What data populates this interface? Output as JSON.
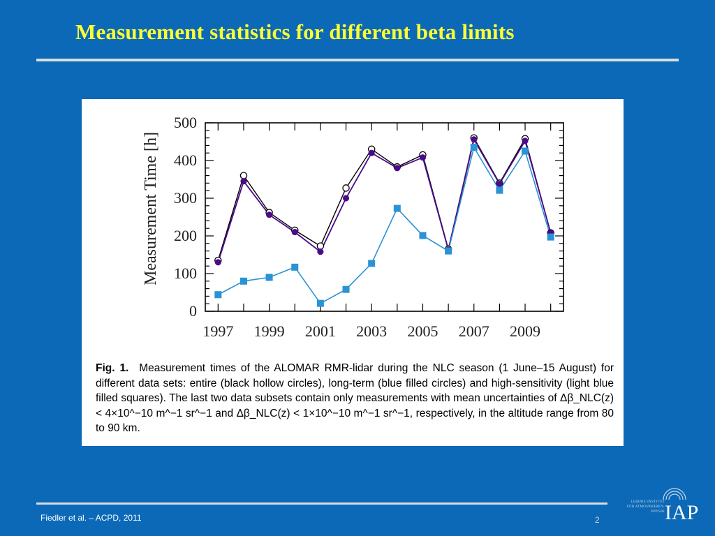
{
  "slide": {
    "title": "Measurement statistics for different beta limits",
    "footer": "Fiedler et al. – ACPD, 2011",
    "page_number": "2",
    "logo_text": "LEIBNIZ-INSTITUT FÜR ATMOSPHÄREN-PHYSIK",
    "logo_mark": "IAP"
  },
  "caption": {
    "label": "Fig. 1.",
    "text": "Measurement times of the ALOMAR RMR-lidar during the NLC season (1 June–15 August) for different data sets: entire (black hollow circles), long-term (blue filled circles) and high-sensitivity (light blue filled squares). The last two data subsets contain only measurements with mean uncertainties of Δβ_NLC(z) < 4×10^−10 m^−1 sr^−1 and Δβ_NLC(z) < 1×10^−10 m^−1 sr^−1, respectively, in the altitude range from 80 to 90 km."
  },
  "chart_data": {
    "type": "line",
    "title": "",
    "xlabel": "",
    "ylabel": "Measurement Time [h]",
    "xlim": [
      1996.5,
      2010.5
    ],
    "ylim": [
      0,
      500
    ],
    "x_ticks": [
      1997,
      1999,
      2001,
      2003,
      2005,
      2007,
      2009
    ],
    "y_ticks": [
      0,
      100,
      200,
      300,
      400,
      500
    ],
    "grid": false,
    "x": [
      1997,
      1998,
      1999,
      2000,
      2001,
      2002,
      2003,
      2004,
      2005,
      2006,
      2007,
      2008,
      2009,
      2010
    ],
    "series": [
      {
        "key": "entire",
        "marker": "hollow-circle",
        "color": "#000000",
        "values": [
          135,
          360,
          262,
          215,
          173,
          327,
          430,
          383,
          415,
          165,
          460,
          340,
          458,
          208
        ]
      },
      {
        "key": "long-term",
        "marker": "filled-circle",
        "color": "#4b0a8c",
        "values": [
          130,
          345,
          256,
          210,
          158,
          300,
          420,
          380,
          408,
          163,
          456,
          338,
          452,
          208
        ]
      },
      {
        "key": "high-sensitivity",
        "marker": "filled-square",
        "color": "#2b93d4",
        "values": [
          44,
          80,
          90,
          117,
          21,
          58,
          127,
          273,
          201,
          160,
          435,
          321,
          425,
          197
        ]
      }
    ]
  }
}
